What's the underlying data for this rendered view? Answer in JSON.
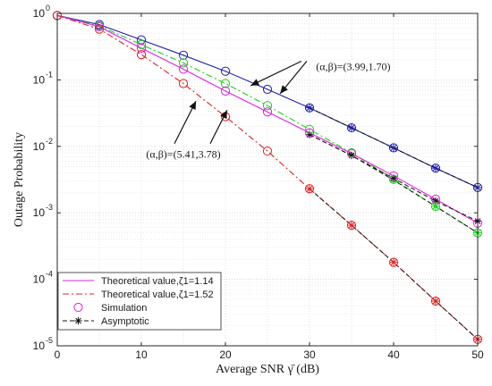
{
  "chart_data": {
    "type": "line",
    "title": "",
    "xlabel": "Average SNR γ̄ (dB)",
    "ylabel": "Outage Probability",
    "xlim": [
      0,
      50
    ],
    "ylim_exponent": [
      -5,
      0
    ],
    "yscale": "log",
    "grid": true,
    "xticks": [
      0,
      10,
      20,
      30,
      40,
      50
    ],
    "yticks": [
      {
        "exp": 0,
        "label": "0"
      },
      {
        "exp": -1,
        "label": "-1"
      },
      {
        "exp": -2,
        "label": "-2"
      },
      {
        "exp": -3,
        "label": "-3"
      },
      {
        "exp": -4,
        "label": "-4"
      },
      {
        "exp": -5,
        "label": "-5"
      }
    ],
    "ytick_base": "10",
    "x": [
      0,
      5,
      10,
      15,
      20,
      25,
      30,
      35,
      40,
      45,
      50
    ],
    "series": [
      {
        "name": "",
        "color": "#1f1fb0",
        "style": "solid",
        "values": [
          0.93,
          0.68,
          0.4,
          0.235,
          0.135,
          0.072,
          0.038,
          0.019,
          0.0095,
          0.0047,
          0.0024
        ]
      },
      {
        "name": "",
        "color": "#1fd01f",
        "style": "dashdot",
        "values": [
          0.93,
          0.65,
          0.34,
          0.18,
          0.088,
          0.041,
          0.018,
          0.008,
          0.0032,
          0.00125,
          0.0005
        ]
      },
      {
        "name": "Theoretical value,ζ1=1.14",
        "color": "#e020e0",
        "style": "solid",
        "values": [
          0.93,
          0.63,
          0.3,
          0.145,
          0.068,
          0.033,
          0.016,
          0.0078,
          0.0036,
          0.0016,
          0.0007
        ]
      },
      {
        "name": "Theoretical value,ζ1=1.52",
        "color": "#e02020",
        "style": "dashdot",
        "values": [
          0.93,
          0.58,
          0.24,
          0.088,
          0.028,
          0.0085,
          0.0023,
          0.00065,
          0.00018,
          4.7e-05,
          1.25e-05
        ]
      }
    ],
    "simulation": {
      "name": "Simulation",
      "x": [
        0,
        5,
        10,
        15,
        20,
        25,
        30,
        35,
        40,
        45,
        50
      ],
      "points_per_series": [
        [
          0.93,
          0.68,
          0.4,
          0.235,
          0.135,
          0.072,
          0.038,
          0.019,
          0.0095,
          0.0047,
          0.0024
        ],
        [
          0.93,
          0.65,
          0.34,
          0.18,
          0.088,
          0.041,
          0.018,
          0.008,
          0.0032,
          0.00125,
          0.0005
        ],
        [
          0.93,
          0.63,
          0.3,
          0.145,
          0.068,
          0.033,
          0.016,
          0.0078,
          0.0036,
          0.0016,
          0.0007
        ],
        [
          0.93,
          0.58,
          0.24,
          0.088,
          0.028,
          0.0085,
          0.0023,
          0.00065,
          0.00018,
          4.7e-05,
          1.25e-05
        ]
      ]
    },
    "asymptotic": {
      "name": "Asymptotic",
      "x": [
        30,
        35,
        40,
        45,
        50
      ],
      "lines": [
        {
          "color": "#1f1fb0",
          "values": [
            0.038,
            0.019,
            0.0095,
            0.0047,
            0.0024
          ]
        },
        {
          "color": "#1fd01f",
          "values": [
            0.015,
            0.0073,
            0.0031,
            0.00125,
            0.0005
          ]
        },
        {
          "color": "#111111",
          "values": [
            0.015,
            0.0073,
            0.0033,
            0.0015,
            0.00075
          ]
        },
        {
          "color": "#e02020",
          "values": [
            0.0023,
            0.00065,
            0.00018,
            4.7e-05,
            1.25e-05
          ]
        }
      ]
    },
    "annotations": [
      {
        "text": "(α,β)=(3.99,1.70)",
        "label_x": 35.2,
        "label_exp": -0.8,
        "arrows_to": [
          {
            "x": 23.0,
            "y": 0.082
          },
          {
            "x": 26.5,
            "y": 0.062
          }
        ]
      },
      {
        "text": "(α,β)=(5.41,3.78)",
        "label_x": 15.0,
        "label_exp": -2.12,
        "arrows_to": [
          {
            "x": 16.5,
            "y": 0.048
          },
          {
            "x": 20.2,
            "y": 0.035
          }
        ]
      }
    ],
    "legend": {
      "placement": "bottom-left",
      "entries": [
        {
          "label": "Theoretical value,ζ1=1.14",
          "color": "#e020e0",
          "kind": "solid"
        },
        {
          "label": "Theoretical value,ζ1=1.52",
          "color": "#e02020",
          "kind": "dashdot"
        },
        {
          "label": "Simulation",
          "color": "#e020e0",
          "kind": "circle"
        },
        {
          "label": "Asymptotic",
          "color": "#111111",
          "kind": "dashstar"
        }
      ]
    }
  }
}
